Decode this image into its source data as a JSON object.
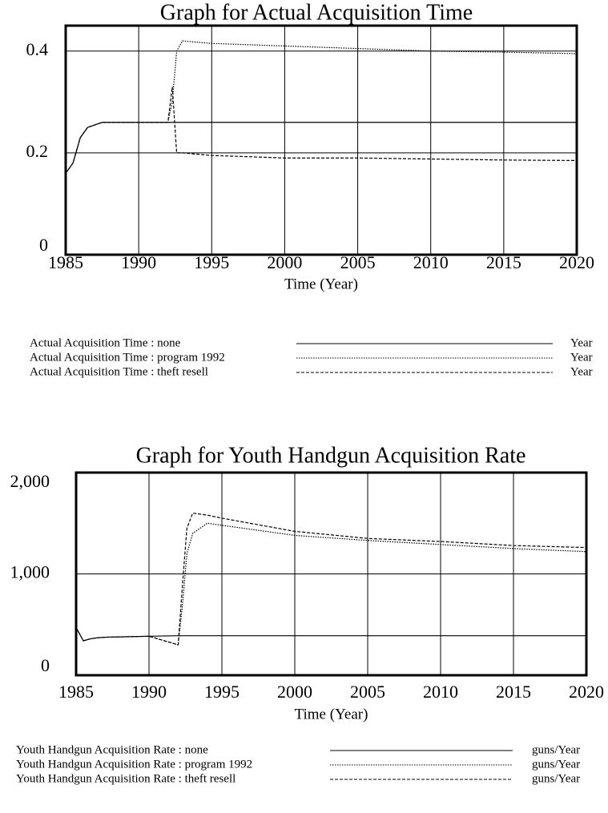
{
  "chart_data": [
    {
      "type": "line",
      "title": "Graph for Actual Acquisition Time",
      "x_label": "Time (Year)",
      "xlim": [
        1985,
        2020
      ],
      "xticks": [
        1985,
        1990,
        1995,
        2000,
        2005,
        2010,
        2015,
        2020
      ],
      "ylim": [
        0,
        0.45
      ],
      "yticks": [
        0,
        0.2,
        0.4
      ],
      "grid": true,
      "x": [
        1985,
        1985.5,
        1986,
        1986.5,
        1987,
        1987.5,
        1990,
        1992,
        1992.3,
        1992.6,
        1993,
        1995,
        2000,
        2005,
        2010,
        2015,
        2020
      ],
      "series": [
        {
          "name": "Actual Acquisition Time : none",
          "units": "Year",
          "color": "#000000",
          "style": "solid",
          "values": [
            0.16,
            0.18,
            0.23,
            0.25,
            0.255,
            0.26,
            0.26,
            0.26,
            0.26,
            0.26,
            0.26,
            0.26,
            0.26,
            0.26,
            0.26,
            0.26,
            0.26
          ]
        },
        {
          "name": "Actual Acquisition Time : program 1992",
          "units": "Year",
          "color": "#000000",
          "style": "dotted",
          "values": [
            0.16,
            0.18,
            0.23,
            0.25,
            0.255,
            0.26,
            0.26,
            0.26,
            0.3,
            0.4,
            0.42,
            0.415,
            0.41,
            0.405,
            0.4,
            0.398,
            0.395
          ]
        },
        {
          "name": "Actual Acquisition Time : theft resell",
          "units": "Year",
          "color": "#000000",
          "style": "dashed",
          "values": [
            0.16,
            0.18,
            0.23,
            0.25,
            0.255,
            0.26,
            0.26,
            0.26,
            0.33,
            0.2,
            0.2,
            0.195,
            0.19,
            0.19,
            0.188,
            0.186,
            0.185
          ]
        }
      ]
    },
    {
      "type": "line",
      "title": "Graph for Youth Handgun Acquisition Rate",
      "x_label": "Time (Year)",
      "xlim": [
        1985,
        2020
      ],
      "xticks": [
        1985,
        1990,
        1995,
        2000,
        2005,
        2010,
        2015,
        2020
      ],
      "ylim": [
        0,
        2000
      ],
      "yticks": [
        0,
        {
          "value": 1000,
          "label": "1,000"
        },
        {
          "value": 2000,
          "label": "2,000"
        }
      ],
      "grid": true,
      "x": [
        1985,
        1985.5,
        1986,
        1986.5,
        1987,
        1990,
        1992,
        1992.3,
        1992.6,
        1993,
        1994,
        1995,
        2000,
        2005,
        2010,
        2015,
        2020
      ],
      "series": [
        {
          "name": "Youth Handgun Acquisition Rate : none",
          "units": "guns/Year",
          "color": "#000000",
          "style": "solid",
          "values": [
            470,
            340,
            360,
            370,
            375,
            385,
            390,
            390,
            390,
            390,
            390,
            390,
            390,
            390,
            390,
            390,
            390
          ]
        },
        {
          "name": "Youth Handgun Acquisition Rate : program 1992",
          "units": "guns/Year",
          "color": "#000000",
          "style": "dotted",
          "values": [
            470,
            340,
            360,
            370,
            375,
            385,
            300,
            700,
            1200,
            1400,
            1500,
            1480,
            1380,
            1330,
            1290,
            1250,
            1220
          ]
        },
        {
          "name": "Youth Handgun Acquisition Rate : theft resell",
          "units": "guns/Year",
          "color": "#000000",
          "style": "dashed",
          "values": [
            470,
            340,
            360,
            370,
            375,
            385,
            300,
            900,
            1450,
            1600,
            1580,
            1550,
            1420,
            1350,
            1320,
            1280,
            1260
          ]
        }
      ]
    }
  ]
}
